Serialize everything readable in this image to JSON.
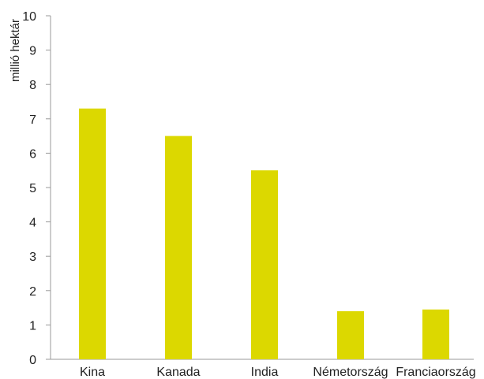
{
  "chart_data": {
    "type": "bar",
    "categories": [
      "Kina",
      "Kanada",
      "India",
      "Németország",
      "Franciaország"
    ],
    "values": [
      7.3,
      6.5,
      5.5,
      1.4,
      1.45
    ],
    "xlabel": "",
    "ylabel": "millió hektár",
    "ylim": [
      0,
      10
    ],
    "yticks": [
      0,
      1,
      2,
      3,
      4,
      5,
      6,
      7,
      8,
      9,
      10
    ],
    "grid": false,
    "legend": "none",
    "bar_color": "#dcd800",
    "axis_color": "#9a9a9a"
  }
}
